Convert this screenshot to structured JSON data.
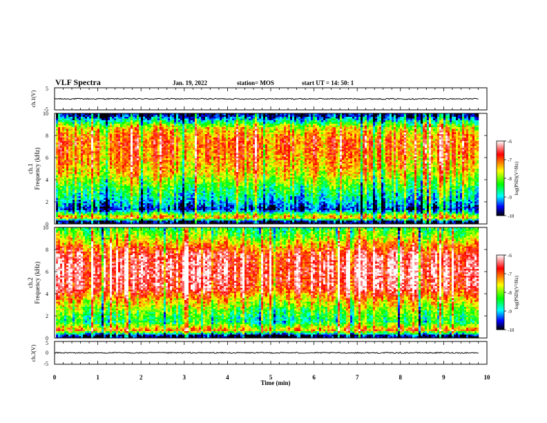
{
  "header": {
    "title": "VLF Spectra",
    "date": "Jan. 19, 2022",
    "station": "station= MOS",
    "start": "start  UT =   14: 50: 1"
  },
  "colors": {
    "colormap": [
      "#ffffff",
      "#ff0000",
      "#ffff00",
      "#00ff00",
      "#00ffff",
      "#0000ff",
      "#000000"
    ],
    "trace": "#000000",
    "frame": "#000000"
  },
  "chart_data": [
    {
      "type": "line",
      "ylabel": "ch.1(V)",
      "ylim": [
        -5,
        5
      ],
      "yticks": [
        "5",
        "-5"
      ],
      "x": [
        0,
        1,
        2,
        3,
        4,
        5,
        6,
        7,
        8,
        9,
        9.8
      ],
      "values": [
        0,
        0,
        0,
        0,
        0,
        0,
        0,
        0,
        0,
        0,
        0
      ]
    },
    {
      "type": "heatmap",
      "ylabel": "ch.1",
      "ylabel2": "Frequency (kHz)",
      "ylim": [
        0,
        10
      ],
      "yticks": [
        "0",
        "2",
        "4",
        "6",
        "8",
        "10"
      ],
      "xlim": [
        0,
        9.8
      ],
      "colorbar": {
        "label": "log(PSD)(V²/Hz)",
        "range": [
          -10,
          -6
        ],
        "ticks": [
          "-6",
          "-7",
          "-8",
          "-9",
          "-10"
        ]
      },
      "band_profile": [
        {
          "f": 9.8,
          "level": -9.7
        },
        {
          "f": 9.3,
          "level": -8.8
        },
        {
          "f": 8.7,
          "level": -7.6
        },
        {
          "f": 7.5,
          "level": -7.0
        },
        {
          "f": 6.0,
          "level": -7.2
        },
        {
          "f": 4.5,
          "level": -7.6
        },
        {
          "f": 3.2,
          "level": -8.4
        },
        {
          "f": 2.0,
          "level": -9.0
        },
        {
          "f": 1.3,
          "level": -9.6
        },
        {
          "f": 0.6,
          "level": -7.2
        },
        {
          "f": 0.2,
          "level": -9.9
        }
      ]
    },
    {
      "type": "heatmap",
      "ylabel": "ch.2",
      "ylabel2": "Frequency (kHz)",
      "ylim": [
        0,
        10
      ],
      "yticks": [
        "0",
        "2",
        "4",
        "6",
        "8",
        "10"
      ],
      "xlim": [
        0,
        9.8
      ],
      "colorbar": {
        "label": "log(PSD)(V²/Hz)",
        "range": [
          -10,
          -6
        ],
        "ticks": [
          "-6",
          "-7",
          "-8",
          "-9",
          "-10"
        ]
      },
      "band_profile": [
        {
          "f": 9.8,
          "level": -8.4
        },
        {
          "f": 9.0,
          "level": -7.8
        },
        {
          "f": 8.3,
          "level": -7.2
        },
        {
          "f": 7.5,
          "level": -6.6
        },
        {
          "f": 6.0,
          "level": -6.4
        },
        {
          "f": 4.5,
          "level": -6.6
        },
        {
          "f": 3.5,
          "level": -7.4
        },
        {
          "f": 2.5,
          "level": -8.1
        },
        {
          "f": 1.5,
          "level": -8.6
        },
        {
          "f": 0.7,
          "level": -7.2
        },
        {
          "f": 0.2,
          "level": -9.9
        }
      ]
    },
    {
      "type": "line",
      "ylabel": "ch.3(V)",
      "ylim": [
        -5,
        5
      ],
      "yticks": [
        "5",
        "0",
        "-5"
      ],
      "x": [
        0,
        1,
        2,
        3,
        4,
        5,
        6,
        7,
        8,
        9,
        9.8
      ],
      "values": [
        0,
        0,
        0,
        0,
        0,
        0,
        0,
        0,
        0,
        0,
        0
      ]
    }
  ],
  "xaxis": {
    "label": "Time (min)",
    "lim": [
      0,
      10
    ],
    "ticks": [
      "0",
      "1",
      "2",
      "3",
      "4",
      "5",
      "6",
      "7",
      "8",
      "9",
      "10"
    ]
  }
}
